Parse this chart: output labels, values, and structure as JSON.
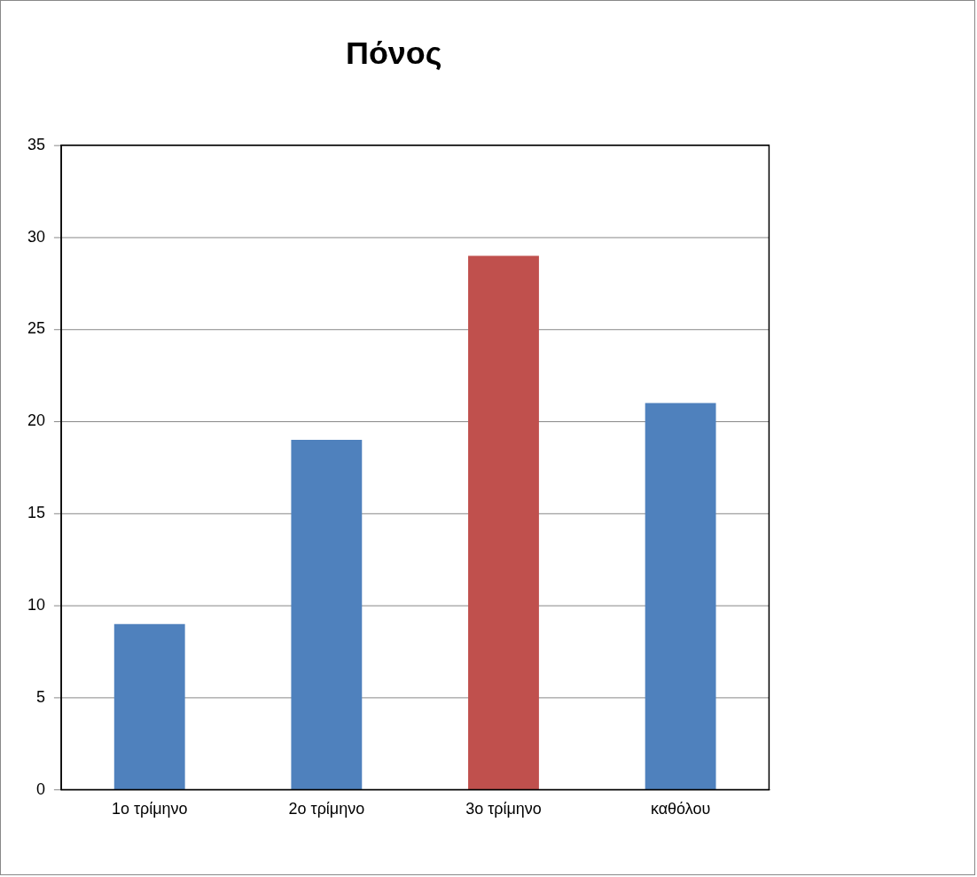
{
  "chart_data": {
    "type": "bar",
    "title": "Πόνος",
    "categories": [
      "1ο τρίμηνο",
      "2ο τρίμηνο",
      "3ο τρίμηνο",
      "καθόλου"
    ],
    "values": [
      9,
      19,
      29,
      21
    ],
    "colors": [
      "#4f81bd",
      "#4f81bd",
      "#c0504d",
      "#4f81bd"
    ],
    "ylim": [
      0,
      35
    ],
    "yticks": [
      0,
      5,
      10,
      15,
      20,
      25,
      30,
      35
    ],
    "grid": "y",
    "legend": false
  }
}
